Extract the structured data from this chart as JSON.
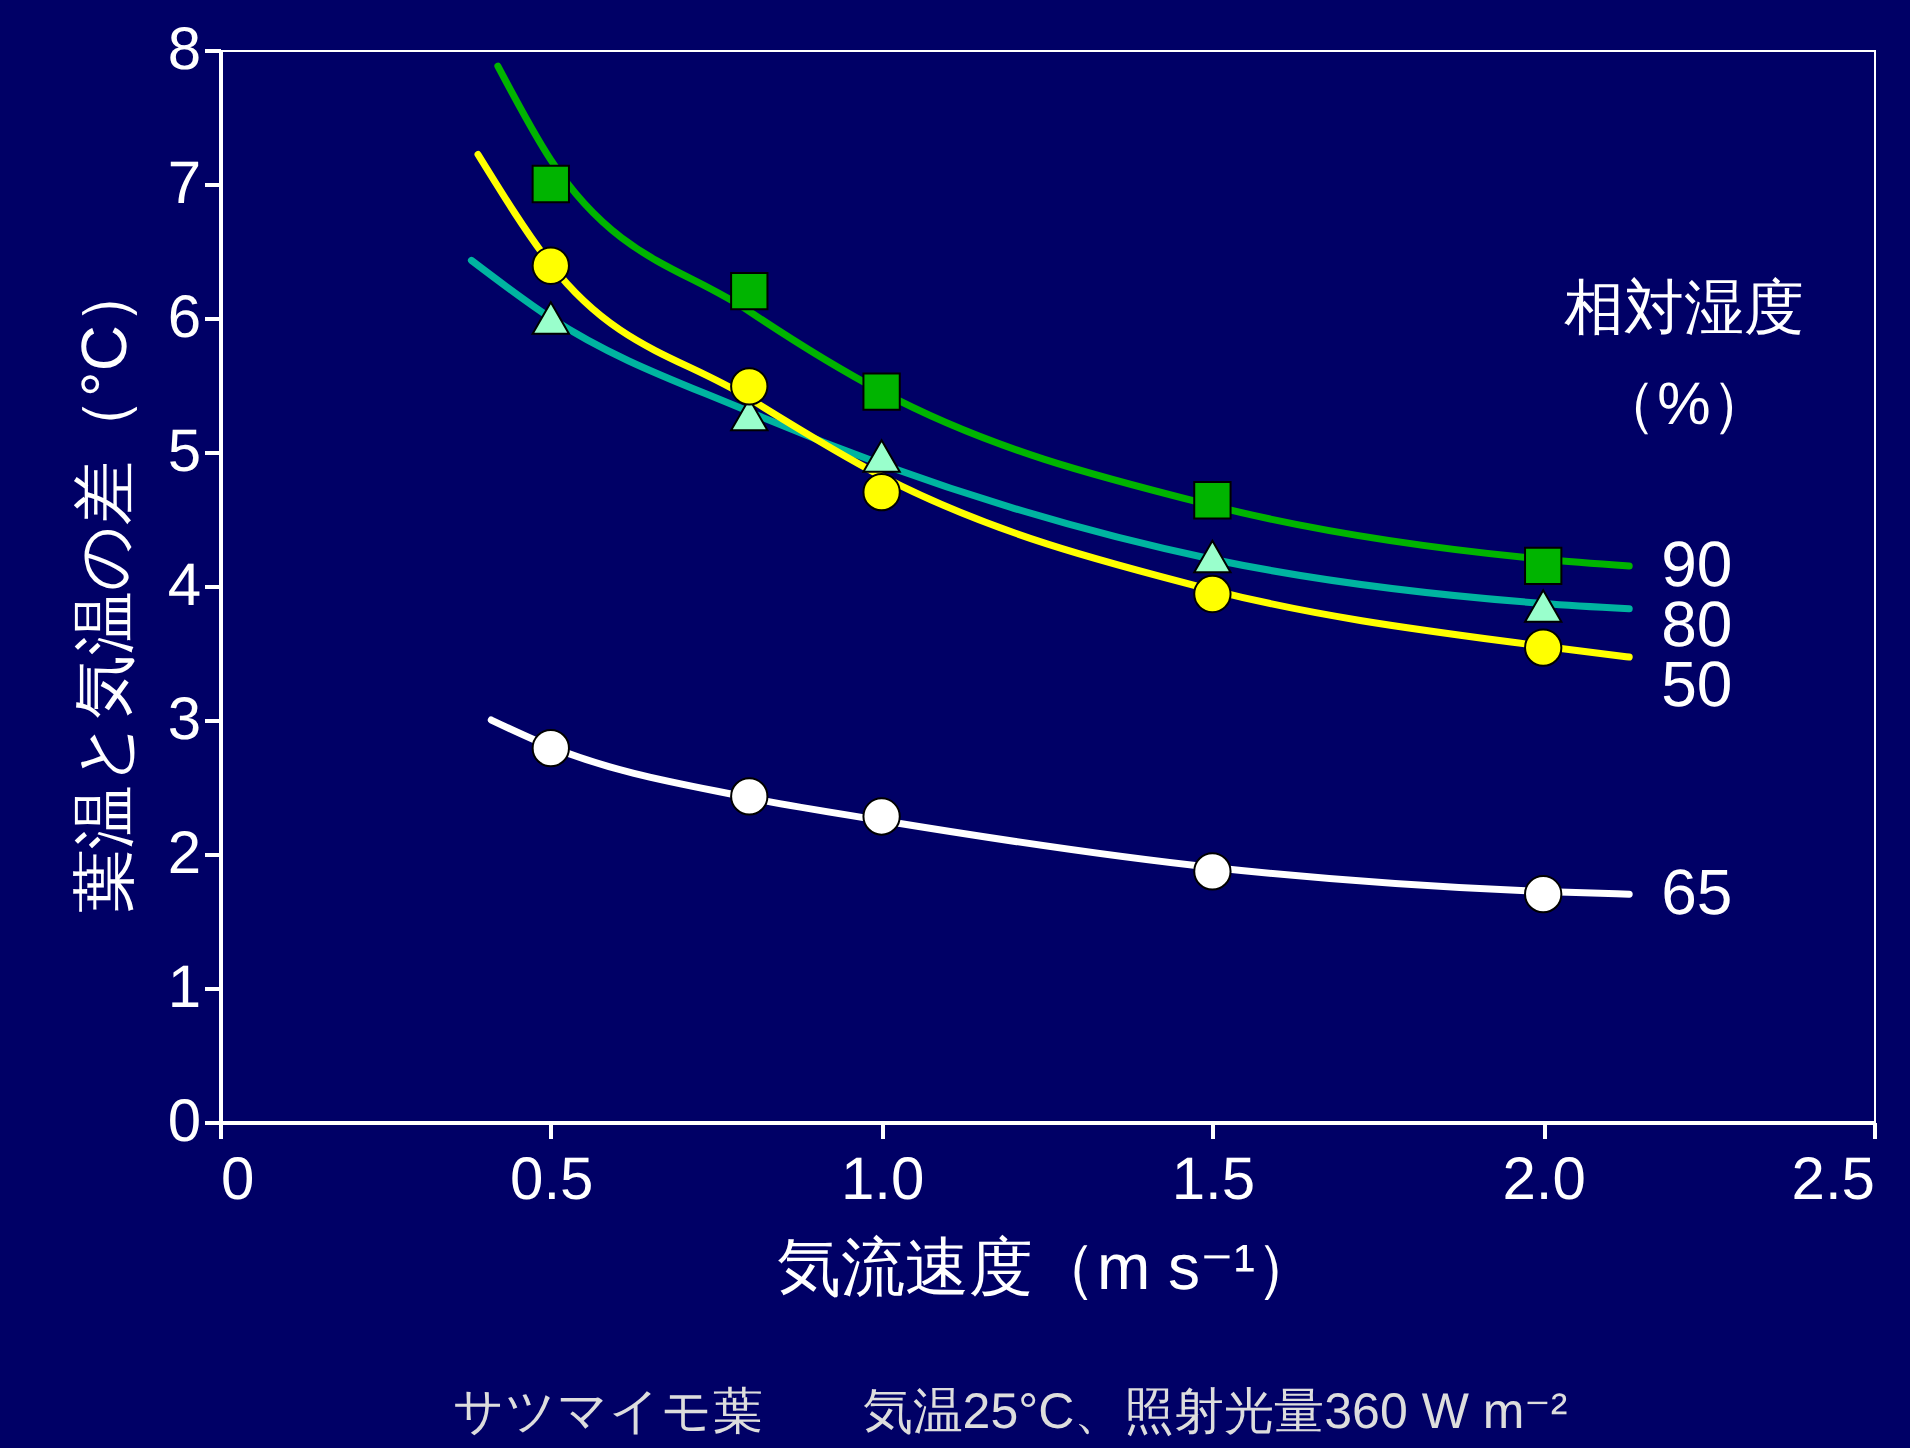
{
  "chart_data": {
    "type": "line",
    "xlabel": "気流速度（m s⁻¹）",
    "ylabel": "葉温と気温の差（°C）",
    "legend_title": "相対湿度（%）",
    "annotations": [
      "サツマイモ葉　　気温25°C、照射光量360 W m⁻²"
    ],
    "xlim": [
      0,
      2.5
    ],
    "xticks": [
      0,
      0.5,
      {
        "value": 1,
        "label": "1.0"
      },
      1.5,
      {
        "value": 2,
        "label": "2.0"
      },
      2.5
    ],
    "ylim": [
      0,
      8
    ],
    "yticks": [
      0,
      1,
      2,
      3,
      4,
      5,
      6,
      7,
      8
    ],
    "grid": false,
    "series": [
      {
        "name": "90",
        "color": "#00b400",
        "x": [
          0.42,
          0.5,
          0.8,
          1.0,
          1.5,
          2.0,
          2.13
        ],
        "values": [
          7.88,
          7.18,
          6.05,
          5.45,
          4.6,
          4.2,
          4.15
        ]
      },
      {
        "name": "80",
        "color": "#00b4a0",
        "x": [
          0.38,
          0.5,
          0.8,
          1.2,
          1.5,
          2.0,
          2.13
        ],
        "values": [
          6.43,
          6.0,
          5.3,
          4.58,
          4.2,
          3.87,
          3.83
        ]
      },
      {
        "name": "50",
        "color": "#ffff00",
        "x": [
          0.39,
          0.5,
          0.8,
          1.0,
          1.5,
          2.0,
          2.13
        ],
        "values": [
          7.22,
          6.4,
          5.4,
          4.82,
          3.97,
          3.55,
          3.47
        ]
      },
      {
        "name": "65",
        "color": "#ffffff",
        "x": [
          0.41,
          0.5,
          0.8,
          1.0,
          1.5,
          2.0,
          2.13
        ],
        "values": [
          3.0,
          2.8,
          2.42,
          2.25,
          1.9,
          1.72,
          1.7
        ]
      },
      {
        "type": "scatter",
        "marker": "square",
        "color": "#00b400",
        "x": [
          0.5,
          0.8,
          1.0,
          1.5,
          2.0
        ],
        "values": [
          7.0,
          6.2,
          5.45,
          4.64,
          4.15
        ]
      },
      {
        "type": "scatter",
        "marker": "triangle",
        "color": "#99ffcc",
        "x": [
          0.5,
          0.8,
          1.0,
          1.5,
          2.0
        ],
        "values": [
          6.0,
          5.28,
          4.97,
          4.22,
          3.85
        ]
      },
      {
        "type": "scatter",
        "marker": "circle",
        "color": "#ffff00",
        "x": [
          0.5,
          0.8,
          1.0,
          1.5,
          2.0
        ],
        "values": [
          6.39,
          5.49,
          4.7,
          3.94,
          3.54
        ]
      },
      {
        "type": "scatter",
        "marker": "circle",
        "color": "#ffffff",
        "x": [
          0.5,
          0.8,
          1.0,
          1.5,
          2.0
        ],
        "values": [
          2.79,
          2.43,
          2.28,
          1.87,
          1.7
        ]
      }
    ]
  }
}
